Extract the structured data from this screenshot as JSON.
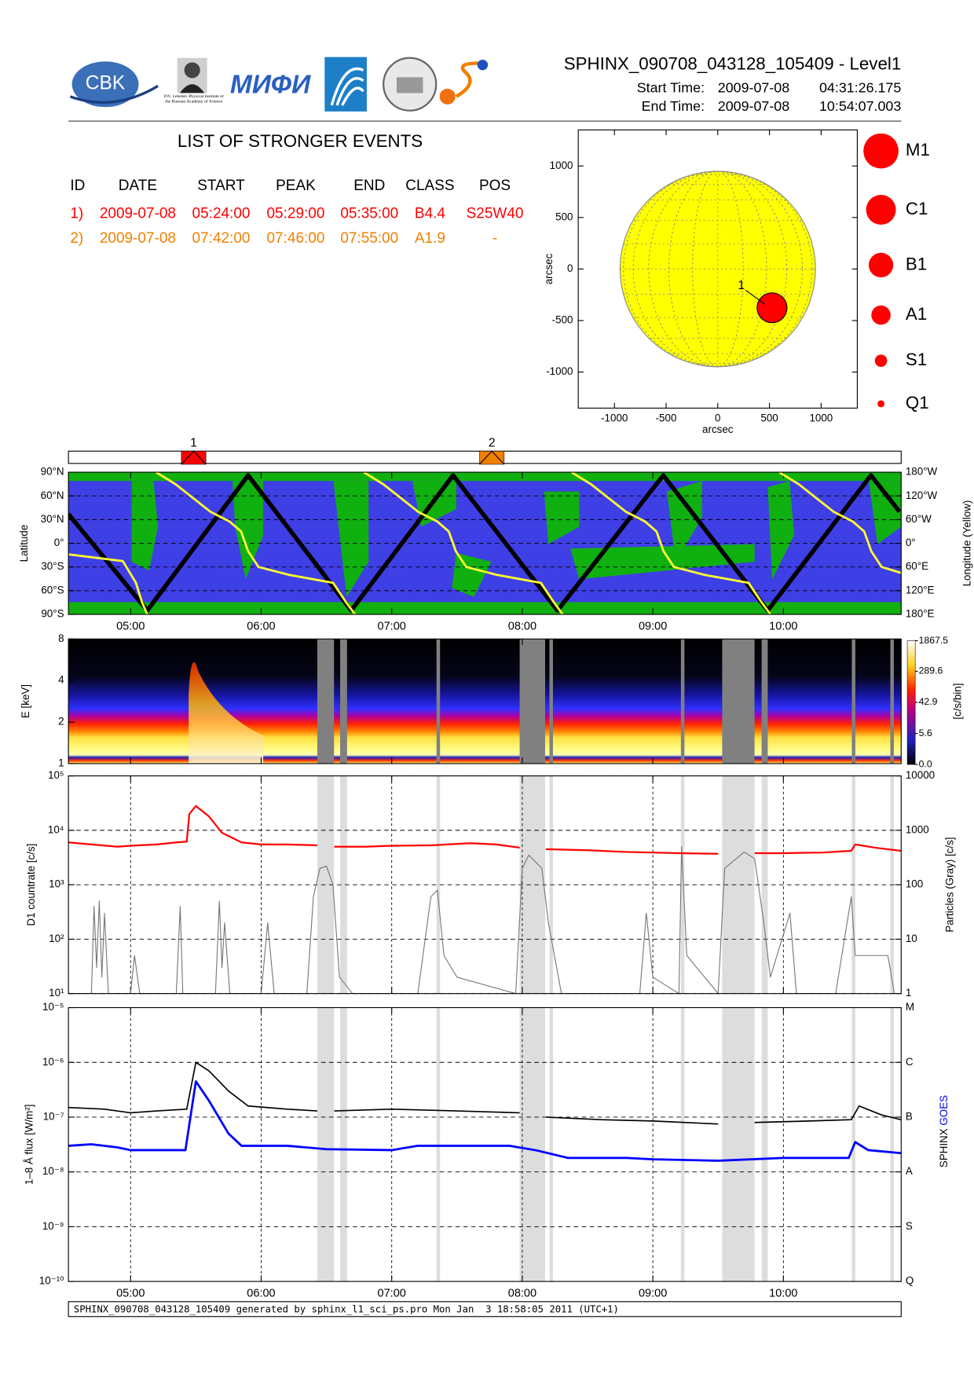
{
  "header": {
    "title": "SPHINX_090708_043128_105409 - Level1",
    "start_label": "Start Time:",
    "start_date": "2009-07-08",
    "start_time": "04:31:26.175",
    "end_label": "End Time:",
    "end_date": "2009-07-08",
    "end_time": "10:54:07.003"
  },
  "logos": {
    "cbk": "CBK",
    "lebedev": "P.N. Lebedev Physical Institute of the Russian Academy of Science",
    "miphi": "МИФИ"
  },
  "events_table": {
    "title": "LIST OF STRONGER EVENTS",
    "headers": [
      "ID",
      "DATE",
      "START",
      "PEAK",
      "END",
      "CLASS",
      "POS"
    ],
    "rows": [
      [
        "1)",
        "2009-07-08",
        "05:24:00",
        "05:29:00",
        "05:35:00",
        "B4.4",
        "S25W40"
      ],
      [
        "2)",
        "2009-07-08",
        "07:42:00",
        "07:46:00",
        "07:55:00",
        "A1.9",
        "-"
      ]
    ],
    "row_colors": [
      "#ff0000",
      "#f08000"
    ]
  },
  "chart_data": [
    {
      "type": "scatter",
      "xlabel": "arcsec",
      "ylabel": "arcsec",
      "xlim": [
        -1350,
        1350
      ],
      "ylim": [
        -1350,
        1350
      ],
      "xticks": [
        -1000,
        -500,
        0,
        500,
        1000
      ],
      "yticks": [
        -1000,
        -500,
        0,
        500,
        1000
      ],
      "sun_radius": 945,
      "sun_color": "#ffff00",
      "points": {
        "x": [
          525
        ],
        "y": [
          -376
        ],
        "labels": [
          "1"
        ],
        "color": "#ff0000"
      },
      "size_legend": [
        "M1",
        "C1",
        "B1",
        "A1",
        "S1",
        "Q1"
      ],
      "size_legend_color": "#ff0000"
    },
    {
      "type": "timeline",
      "xlim": [
        4.524,
        10.902
      ],
      "x": [
        5.483,
        7.767
      ],
      "labels": [
        "1",
        "2"
      ],
      "colors": [
        "#ff0000",
        "#f08000"
      ]
    },
    {
      "type": "line",
      "ylabel": "Latitude",
      "y2label": "Longitude (Yellow)",
      "xlim": [
        4.524,
        10.902
      ],
      "ylim": [
        -90,
        90
      ],
      "xticks": [
        {
          "value": 5,
          "label": "05:00"
        },
        {
          "value": 6,
          "label": "06:00"
        },
        {
          "value": 7,
          "label": "07:00"
        },
        {
          "value": 8,
          "label": "08:00"
        },
        {
          "value": 9,
          "label": "09:00"
        },
        {
          "value": 10,
          "label": "10:00"
        }
      ],
      "yticks": [
        {
          "value": -90,
          "label": "90°S"
        },
        {
          "value": -60,
          "label": "60°S"
        },
        {
          "value": -30,
          "label": "30°S"
        },
        {
          "value": 0,
          "label": "0°"
        },
        {
          "value": 30,
          "label": "30°N"
        },
        {
          "value": 60,
          "label": "60°N"
        },
        {
          "value": 90,
          "label": "90°N"
        }
      ],
      "y2lim": [
        180,
        -180
      ],
      "y2ticks": [
        {
          "value": -180,
          "label": "180°W"
        },
        {
          "value": -120,
          "label": "120°W"
        },
        {
          "value": -60,
          "label": "60°W"
        },
        {
          "value": 0,
          "label": "0°"
        },
        {
          "value": 60,
          "label": "60°E"
        },
        {
          "value": 120,
          "label": "120°E"
        },
        {
          "value": 180,
          "label": "180°E"
        }
      ],
      "grid": "y",
      "series": [
        {
          "color": "#000000",
          "width": 5,
          "x": [
            4.524,
            5.128,
            5.9,
            6.69,
            7.47,
            8.27,
            9.08,
            9.88,
            10.67,
            10.89
          ],
          "values": [
            37,
            -85,
            86,
            -85,
            86,
            -85,
            86,
            -85,
            86,
            40
          ]
        },
        {
          "color": "#ffff30",
          "width": 2.5,
          "axis": "y2",
          "x": [
            4.524,
            4.94,
            5.041,
            5.088,
            5.128,
            5.16,
            5.195,
            5.343,
            5.611,
            5.759,
            5.846,
            5.9,
            5.98,
            6.215,
            6.551,
            6.652,
            6.719,
            6.75,
            6.786,
            6.934,
            7.202,
            7.35,
            7.437,
            7.491,
            7.571,
            7.806,
            8.142,
            8.243,
            8.31,
            8.34,
            8.377,
            8.525,
            8.793,
            8.941,
            9.028,
            9.082,
            9.162,
            9.397,
            9.733,
            9.834,
            9.901,
            9.93,
            9.968,
            10.116,
            10.384,
            10.532,
            10.619,
            10.673,
            10.753,
            10.902
          ],
          "values": [
            28,
            45,
            100,
            150,
            180,
            null,
            -180,
            -150,
            -80,
            -55,
            -30,
            20,
            60,
            80,
            100,
            150,
            180,
            null,
            -180,
            -150,
            -80,
            -55,
            -30,
            20,
            60,
            80,
            100,
            150,
            180,
            null,
            -180,
            -150,
            -80,
            -55,
            -30,
            20,
            60,
            80,
            100,
            150,
            180,
            null,
            -180,
            -150,
            -80,
            -55,
            -30,
            20,
            60,
            75
          ]
        }
      ]
    },
    {
      "type": "spectrogram",
      "ylabel": "E [keV]",
      "xlim": [
        4.524,
        10.902
      ],
      "ylim": [
        1,
        8
      ],
      "ylog": true,
      "yticks": [
        1,
        2,
        4,
        8
      ],
      "xticks": [
        5,
        6,
        7,
        8,
        9,
        10
      ],
      "gap_color": "#808080",
      "gaps": [
        [
          6.43,
          6.558
        ],
        [
          6.605,
          6.658
        ],
        [
          7.343,
          7.37
        ],
        [
          7.98,
          8.175
        ],
        [
          8.208,
          8.235
        ],
        [
          9.215,
          9.242
        ],
        [
          9.531,
          9.779
        ],
        [
          9.833,
          9.88
        ],
        [
          10.524,
          10.551
        ],
        [
          10.819,
          10.846
        ]
      ],
      "colorbar": {
        "label": "[c/s/bin]",
        "lim": [
          0,
          1867.5
        ],
        "ticks": [
          {
            "value": 0,
            "label": "0.0"
          },
          5.6,
          42.9,
          289.6,
          1867.5
        ]
      }
    },
    {
      "type": "line",
      "ylabel": "D1 countrate [c/s]",
      "y2label": "Particles (Gray) [c/s]",
      "xlim": [
        4.524,
        10.902
      ],
      "ylim": [
        10,
        100000
      ],
      "ylog": true,
      "yticks": [
        {
          "value": 10,
          "label": "10¹"
        },
        {
          "value": 100,
          "label": "10²"
        },
        {
          "value": 1000,
          "label": "10³"
        },
        {
          "value": 10000,
          "label": "10⁴"
        },
        {
          "value": 100000,
          "label": "10⁵"
        }
      ],
      "y2lim": [
        1,
        10000
      ],
      "y2log": true,
      "y2ticks": [
        1,
        10,
        100,
        1000,
        10000
      ],
      "xticks": [
        5,
        6,
        7,
        8,
        9,
        10
      ],
      "grid": "both",
      "shade_color": "#dddddd",
      "series": [
        {
          "color": "#777777",
          "width": 1,
          "axis": "y2",
          "x": [
            4.524,
            4.7,
            4.72,
            4.74,
            4.76,
            4.78,
            4.8,
            4.83,
            5.0,
            5.03,
            5.07,
            5.35,
            5.38,
            5.4,
            5.65,
            5.68,
            5.7,
            5.72,
            5.76,
            6.0,
            6.05,
            6.1,
            6.35,
            6.4,
            6.45,
            6.5,
            6.55,
            6.6,
            6.7,
            7.2,
            7.3,
            7.35,
            7.4,
            7.5,
            7.95,
            8.0,
            8.05,
            8.15,
            8.2,
            8.3,
            8.9,
            8.95,
            9.0,
            9.2,
            9.22,
            9.26,
            9.5,
            9.55,
            9.7,
            9.78,
            9.85,
            9.9,
            10.05,
            10.1,
            10.4,
            10.52,
            10.55,
            10.8,
            10.85,
            10.9
          ],
          "values": [
            1,
            1,
            40,
            3,
            50,
            2,
            30,
            1,
            1,
            5,
            1,
            1,
            40,
            1,
            1,
            50,
            3,
            20,
            1,
            1,
            20,
            1,
            1,
            60,
            200,
            220,
            100,
            2,
            1,
            1,
            60,
            80,
            5,
            2,
            1,
            200,
            350,
            200,
            20,
            1,
            1,
            30,
            2,
            1,
            500,
            5,
            1,
            200,
            400,
            300,
            20,
            2,
            30,
            1,
            1,
            60,
            5,
            5,
            1,
            1
          ]
        },
        {
          "color": "#ff0000",
          "width": 2,
          "x": [
            4.524,
            4.7,
            4.9,
            5.0,
            5.2,
            5.35,
            5.43,
            5.45,
            5.5,
            5.6,
            5.7,
            5.85,
            6.0,
            6.2,
            6.43,
            6.49,
            6.56,
            6.8,
            7.0,
            7.3,
            7.6,
            7.8,
            7.98,
            8.08,
            8.18,
            8.5,
            8.8,
            9.0,
            9.2,
            9.5,
            9.65,
            9.78,
            10.0,
            10.3,
            10.52,
            10.55,
            10.7,
            10.9
          ],
          "values": [
            6000,
            5500,
            5000,
            5200,
            5500,
            6000,
            6200,
            20000,
            28000,
            18000,
            9000,
            6000,
            5500,
            5500,
            5300,
            null,
            5000,
            5000,
            5200,
            5300,
            5800,
            5500,
            4800,
            null,
            4500,
            4300,
            4000,
            3900,
            3800,
            3700,
            null,
            3800,
            3800,
            3900,
            4200,
            5500,
            4800,
            4200
          ]
        }
      ]
    },
    {
      "type": "line",
      "ylabel": "1–8 Å flux [W/m²]",
      "xlim": [
        4.524,
        10.902
      ],
      "ylim": [
        1e-10,
        1e-05
      ],
      "ylog": true,
      "yticks": [
        {
          "value": 1e-10,
          "label": "10⁻¹⁰"
        },
        {
          "value": 1e-09,
          "label": "10⁻⁹"
        },
        {
          "value": 1e-08,
          "label": "10⁻⁸"
        },
        {
          "value": 1e-07,
          "label": "10⁻⁷"
        },
        {
          "value": 1e-06,
          "label": "10⁻⁶"
        },
        {
          "value": 1e-05,
          "label": "10⁻⁵"
        }
      ],
      "y2lim": [
        1e-10,
        1e-05
      ],
      "y2log": true,
      "y2ticks": [
        {
          "value": 1e-10,
          "label": "Q"
        },
        {
          "value": 1e-09,
          "label": "S"
        },
        {
          "value": 1e-08,
          "label": "A"
        },
        {
          "value": 1e-07,
          "label": "B"
        },
        {
          "value": 1e-06,
          "label": "C"
        },
        {
          "value": 1e-05,
          "label": "M"
        }
      ],
      "xticks": [
        {
          "value": 5,
          "label": "05:00"
        },
        {
          "value": 6,
          "label": "06:00"
        },
        {
          "value": 7,
          "label": "07:00"
        },
        {
          "value": 8,
          "label": "08:00"
        },
        {
          "value": 9,
          "label": "09:00"
        },
        {
          "value": 10,
          "label": "10:00"
        }
      ],
      "grid": "both",
      "shade_color": "#dddddd",
      "series": [
        {
          "name": "SPHINX",
          "color": "#000000",
          "width": 1.5,
          "x": [
            4.524,
            4.8,
            5.0,
            5.2,
            5.43,
            5.5,
            5.6,
            5.75,
            5.9,
            6.2,
            6.43,
            6.49,
            6.56,
            7.0,
            7.5,
            7.98,
            8.08,
            8.18,
            8.6,
            9.0,
            9.5,
            9.65,
            9.78,
            10.2,
            10.52,
            10.58,
            10.75,
            10.9
          ],
          "values": [
            1.5e-07,
            1.4e-07,
            1.2e-07,
            1.3e-07,
            1.4e-07,
            1e-06,
            7e-07,
            3e-07,
            1.6e-07,
            1.4e-07,
            1.3e-07,
            null,
            1.3e-07,
            1.4e-07,
            1.3e-07,
            1.2e-07,
            null,
            1e-07,
            9e-08,
            8.5e-08,
            7.5e-08,
            null,
            8e-08,
            8.5e-08,
            9e-08,
            1.6e-07,
            1.1e-07,
            9e-08
          ]
        },
        {
          "name": "GOES",
          "color": "#0000ff",
          "width": 2.5,
          "x": [
            4.524,
            4.7,
            4.9,
            5.0,
            5.42,
            5.5,
            5.6,
            5.75,
            5.85,
            6.2,
            6.5,
            7.0,
            7.2,
            7.9,
            8.1,
            8.35,
            8.8,
            9.0,
            9.5,
            10.0,
            10.5,
            10.55,
            10.65,
            10.9
          ],
          "values": [
            3e-08,
            3.2e-08,
            2.8e-08,
            2.5e-08,
            2.5e-08,
            4.5e-07,
            2e-07,
            5e-08,
            3e-08,
            3e-08,
            2.6e-08,
            2.5e-08,
            3e-08,
            3e-08,
            2.5e-08,
            1.8e-08,
            1.8e-08,
            1.7e-08,
            1.6e-08,
            1.8e-08,
            1.8e-08,
            3.5e-08,
            2.5e-08,
            2.2e-08
          ]
        }
      ]
    }
  ],
  "footer": "SPHINX_090708_043128_105409 generated by sphinx_l1_sci_ps.pro Mon Jan  3 18:58:05 2011 (UTC+1)"
}
